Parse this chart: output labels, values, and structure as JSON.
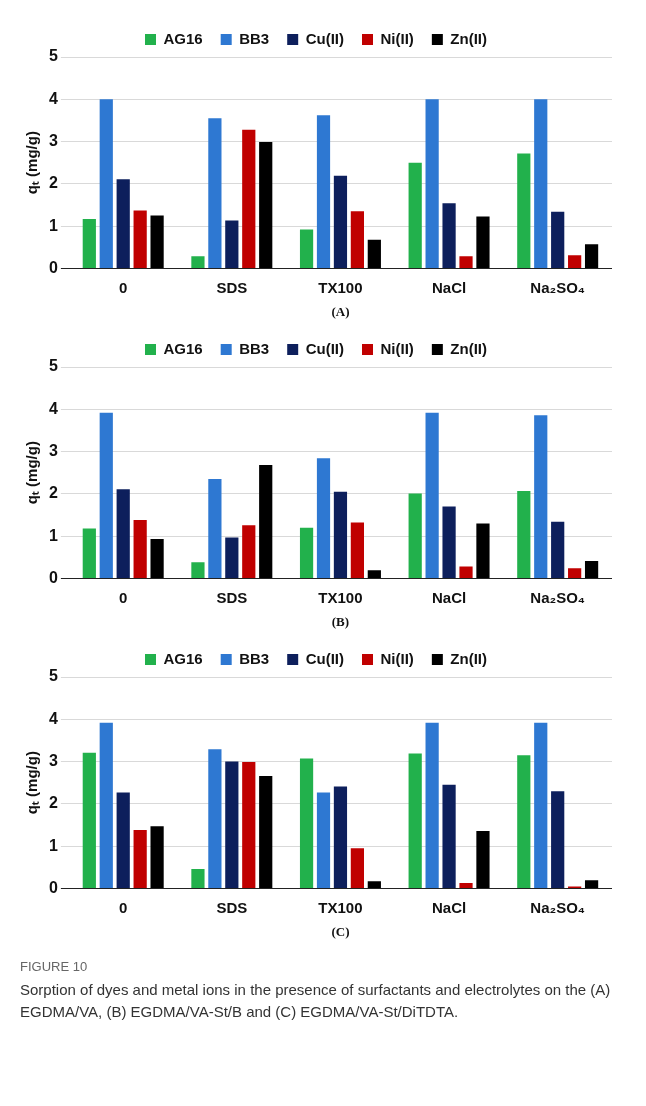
{
  "chart_data": [
    {
      "type": "bar",
      "xlabel": "(A)",
      "ylabel": "qₜ (mg/g)",
      "categories": [
        "0",
        "SDS",
        "TX100",
        "NaCl",
        "Na₂SO₄"
      ],
      "ylim": [
        0,
        5
      ],
      "yticks": [
        0,
        1,
        2,
        3,
        4,
        5
      ],
      "grid": "y",
      "legend": "top",
      "series": [
        {
          "name": "AG16",
          "color": "#22b14c",
          "values": [
            1.17,
            0.29,
            0.92,
            2.5,
            2.72
          ]
        },
        {
          "name": "BB3",
          "color": "#2e78d2",
          "values": [
            4.0,
            3.55,
            3.62,
            4.0,
            4.0
          ]
        },
        {
          "name": "Cu(II)",
          "color": "#0d1f5c",
          "values": [
            2.11,
            1.13,
            2.19,
            1.54,
            1.34
          ]
        },
        {
          "name": "Ni(II)",
          "color": "#c00000",
          "values": [
            1.37,
            3.28,
            1.35,
            0.29,
            0.31
          ]
        },
        {
          "name": "Zn(II)",
          "color": "#000000",
          "values": [
            1.25,
            2.99,
            0.68,
            1.23,
            0.57
          ]
        }
      ]
    },
    {
      "type": "bar",
      "xlabel": "(B)",
      "ylabel": "qₜ (mg/g)",
      "categories": [
        "0",
        "SDS",
        "TX100",
        "NaCl",
        "Na₂SO₄"
      ],
      "ylim": [
        0,
        5
      ],
      "yticks": [
        0,
        1,
        2,
        3,
        4,
        5
      ],
      "grid": "y",
      "legend": "top",
      "series": [
        {
          "name": "AG16",
          "color": "#22b14c",
          "values": [
            1.18,
            0.38,
            1.2,
            2.01,
            2.07
          ]
        },
        {
          "name": "BB3",
          "color": "#2e78d2",
          "values": [
            3.92,
            2.35,
            2.84,
            3.92,
            3.86
          ]
        },
        {
          "name": "Cu(II)",
          "color": "#0d1f5c",
          "values": [
            2.11,
            0.97,
            2.05,
            1.7,
            1.34
          ]
        },
        {
          "name": "Ni(II)",
          "color": "#c00000",
          "values": [
            1.38,
            1.26,
            1.32,
            0.28,
            0.24
          ]
        },
        {
          "name": "Zn(II)",
          "color": "#000000",
          "values": [
            0.93,
            2.68,
            0.19,
            1.3,
            0.41
          ]
        }
      ]
    },
    {
      "type": "bar",
      "xlabel": "(C)",
      "ylabel": "qₜ (mg/g)",
      "categories": [
        "0",
        "SDS",
        "TX100",
        "NaCl",
        "Na₂SO₄"
      ],
      "ylim": [
        0,
        5
      ],
      "yticks": [
        0,
        1,
        2,
        3,
        4,
        5
      ],
      "grid": "y",
      "legend": "top",
      "series": [
        {
          "name": "AG16",
          "color": "#22b14c",
          "values": [
            3.21,
            0.46,
            3.07,
            3.19,
            3.15
          ]
        },
        {
          "name": "BB3",
          "color": "#2e78d2",
          "values": [
            3.92,
            3.29,
            2.27,
            3.92,
            3.92
          ]
        },
        {
          "name": "Cu(II)",
          "color": "#0d1f5c",
          "values": [
            2.27,
            3.0,
            2.41,
            2.45,
            2.3
          ]
        },
        {
          "name": "Ni(II)",
          "color": "#c00000",
          "values": [
            1.38,
            2.99,
            0.95,
            0.13,
            0.02
          ]
        },
        {
          "name": "Zn(II)",
          "color": "#000000",
          "values": [
            1.47,
            2.66,
            0.17,
            1.36,
            0.19
          ]
        }
      ],
      "annotations": [
        "FIGURE 10",
        "Sorption of dyes and metal ions in the presence of surfactants and electrolytes on the (A) EGDMA/VA, (B) EGDMA/VA-St/B and (C) EGDMA/VA-St/DiTDTA."
      ]
    }
  ]
}
